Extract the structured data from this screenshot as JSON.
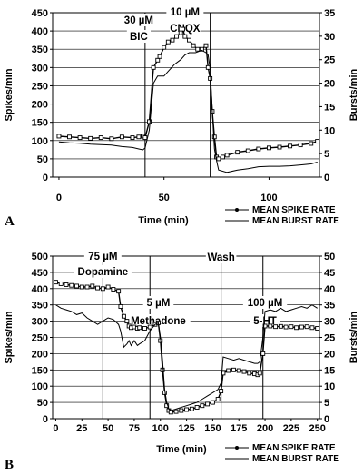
{
  "chart_data": [
    {
      "panel_label": "A",
      "type": "line",
      "xlabel": "Time (min)",
      "ylabel_left": "Spikes/min",
      "ylabel_right": "Bursts/min",
      "xlim": [
        -3,
        124
      ],
      "ylim_left": [
        0,
        450
      ],
      "ylim_right": [
        0,
        35
      ],
      "xticks": [
        0,
        50,
        100
      ],
      "yticks_left": [
        0,
        50,
        100,
        150,
        200,
        250,
        300,
        350,
        400,
        450
      ],
      "yticks_right": [
        0,
        5,
        10,
        15,
        20,
        25,
        30,
        35
      ],
      "grid": "horizontal",
      "legend_position": "below plot, right",
      "annotations": [
        {
          "text": "30 µM",
          "x": 38,
          "line_x": 41
        },
        {
          "text": "BIC",
          "x": 38
        },
        {
          "text": "10 µM",
          "x": 60,
          "line_x": 72
        },
        {
          "text": "CNQX",
          "x": 60
        }
      ],
      "series": [
        {
          "name": "MEAN SPIKE RATE",
          "axis": "left",
          "marker": "square",
          "x": [
            0,
            5,
            10,
            15,
            20,
            25,
            30,
            35,
            38,
            40,
            41,
            43,
            45,
            47,
            48,
            50,
            52,
            54,
            56,
            58,
            59,
            60,
            62,
            64,
            66,
            68,
            70,
            71,
            72,
            73,
            74,
            75,
            76,
            78,
            80,
            85,
            90,
            95,
            100,
            105,
            110,
            115,
            120,
            123
          ],
          "y": [
            112,
            110,
            108,
            106,
            108,
            105,
            110,
            108,
            110,
            112,
            108,
            152,
            300,
            320,
            330,
            355,
            370,
            375,
            385,
            395,
            405,
            385,
            375,
            360,
            350,
            350,
            360,
            300,
            270,
            180,
            110,
            55,
            50,
            55,
            60,
            68,
            72,
            77,
            80,
            82,
            85,
            88,
            92,
            98
          ]
        },
        {
          "name": "MEAN BURST RATE",
          "axis": "right",
          "marker": "none",
          "x": [
            0,
            5,
            10,
            15,
            20,
            25,
            30,
            35,
            38,
            40,
            41,
            43,
            45,
            47,
            50,
            52,
            55,
            58,
            60,
            62,
            65,
            68,
            70,
            71,
            72,
            73,
            74,
            75,
            76,
            80,
            85,
            90,
            95,
            100,
            105,
            110,
            115,
            120,
            123
          ],
          "y": [
            7.5,
            7.3,
            7.2,
            7.0,
            6.9,
            6.8,
            6.5,
            6.3,
            6.0,
            5.8,
            6.2,
            10,
            20,
            21.5,
            21.5,
            22.5,
            24,
            25,
            26,
            26.5,
            26.5,
            27,
            26.5,
            26,
            23,
            14,
            6,
            3.5,
            1.5,
            1.0,
            1.5,
            1.8,
            2.2,
            2.3,
            2.3,
            2.4,
            2.6,
            2.8,
            3.2
          ]
        }
      ]
    },
    {
      "panel_label": "B",
      "type": "line",
      "xlabel": "Time (min)",
      "ylabel_left": "Spikes/min",
      "ylabel_right": "Bursts/min",
      "xlim": [
        -3,
        252
      ],
      "ylim_left": [
        0,
        500
      ],
      "ylim_right": [
        0,
        50
      ],
      "xticks": [
        0,
        25,
        50,
        75,
        100,
        125,
        150,
        175,
        200,
        225,
        250
      ],
      "yticks_left": [
        0,
        50,
        100,
        150,
        200,
        250,
        300,
        350,
        400,
        450,
        500
      ],
      "yticks_right": [
        0,
        5,
        10,
        15,
        20,
        25,
        30,
        35,
        40,
        45,
        50
      ],
      "grid": "horizontal",
      "legend_position": "below plot, right",
      "annotations": [
        {
          "text": "75 µM",
          "x": 45,
          "line_x": 45
        },
        {
          "text": "Dopamine",
          "x": 45
        },
        {
          "text": "5 µM",
          "x": 98,
          "line_x": 90
        },
        {
          "text": "Methadone",
          "x": 98
        },
        {
          "text": "Wash",
          "x": 158,
          "line_x": 158
        },
        {
          "text": "100 µM",
          "x": 200,
          "line_x": 198
        },
        {
          "text": "5-HT",
          "x": 200
        }
      ],
      "series": [
        {
          "name": "MEAN SPIKE RATE",
          "axis": "left",
          "marker": "square",
          "x": [
            0,
            5,
            10,
            15,
            20,
            25,
            30,
            35,
            40,
            45,
            50,
            55,
            60,
            62,
            65,
            68,
            70,
            72,
            75,
            78,
            80,
            85,
            90,
            95,
            98,
            100,
            102,
            104,
            106,
            108,
            110,
            115,
            120,
            125,
            130,
            135,
            140,
            145,
            150,
            155,
            158,
            160,
            165,
            170,
            175,
            180,
            185,
            190,
            193,
            195,
            198,
            200,
            205,
            210,
            215,
            220,
            225,
            230,
            235,
            240,
            245,
            250
          ],
          "y": [
            420,
            415,
            412,
            410,
            408,
            405,
            405,
            408,
            402,
            400,
            405,
            398,
            392,
            345,
            315,
            300,
            285,
            280,
            282,
            278,
            280,
            278,
            282,
            290,
            295,
            240,
            150,
            80,
            40,
            25,
            20,
            22,
            25,
            28,
            30,
            35,
            40,
            45,
            50,
            60,
            85,
            140,
            148,
            150,
            148,
            145,
            140,
            138,
            135,
            140,
            200,
            285,
            285,
            283,
            284,
            282,
            283,
            280,
            282,
            283,
            280,
            278
          ]
        },
        {
          "name": "MEAN BURST RATE",
          "axis": "right",
          "marker": "none",
          "x": [
            0,
            5,
            10,
            15,
            20,
            25,
            30,
            35,
            40,
            45,
            50,
            55,
            60,
            62,
            65,
            68,
            70,
            72,
            75,
            78,
            80,
            85,
            90,
            95,
            98,
            100,
            102,
            104,
            106,
            108,
            110,
            115,
            120,
            125,
            130,
            135,
            140,
            145,
            150,
            155,
            158,
            160,
            165,
            170,
            175,
            180,
            185,
            190,
            193,
            195,
            198,
            200,
            205,
            210,
            215,
            220,
            225,
            230,
            235,
            240,
            245,
            250
          ],
          "y": [
            35,
            34,
            33.5,
            33,
            32,
            32.5,
            31,
            30,
            29,
            30,
            31,
            30.5,
            29,
            27,
            22,
            23,
            24,
            22.5,
            24,
            22.5,
            23,
            24,
            27,
            29,
            29.5,
            25,
            18,
            9,
            5,
            3,
            2.5,
            3,
            3.5,
            4,
            4.5,
            5,
            6,
            7,
            8,
            9,
            11,
            19,
            18.5,
            18,
            18.5,
            18,
            17.5,
            17,
            17,
            17.5,
            25,
            33,
            33.5,
            33,
            34,
            33,
            33.5,
            34,
            34.5,
            34,
            35,
            34
          ]
        }
      ]
    }
  ]
}
